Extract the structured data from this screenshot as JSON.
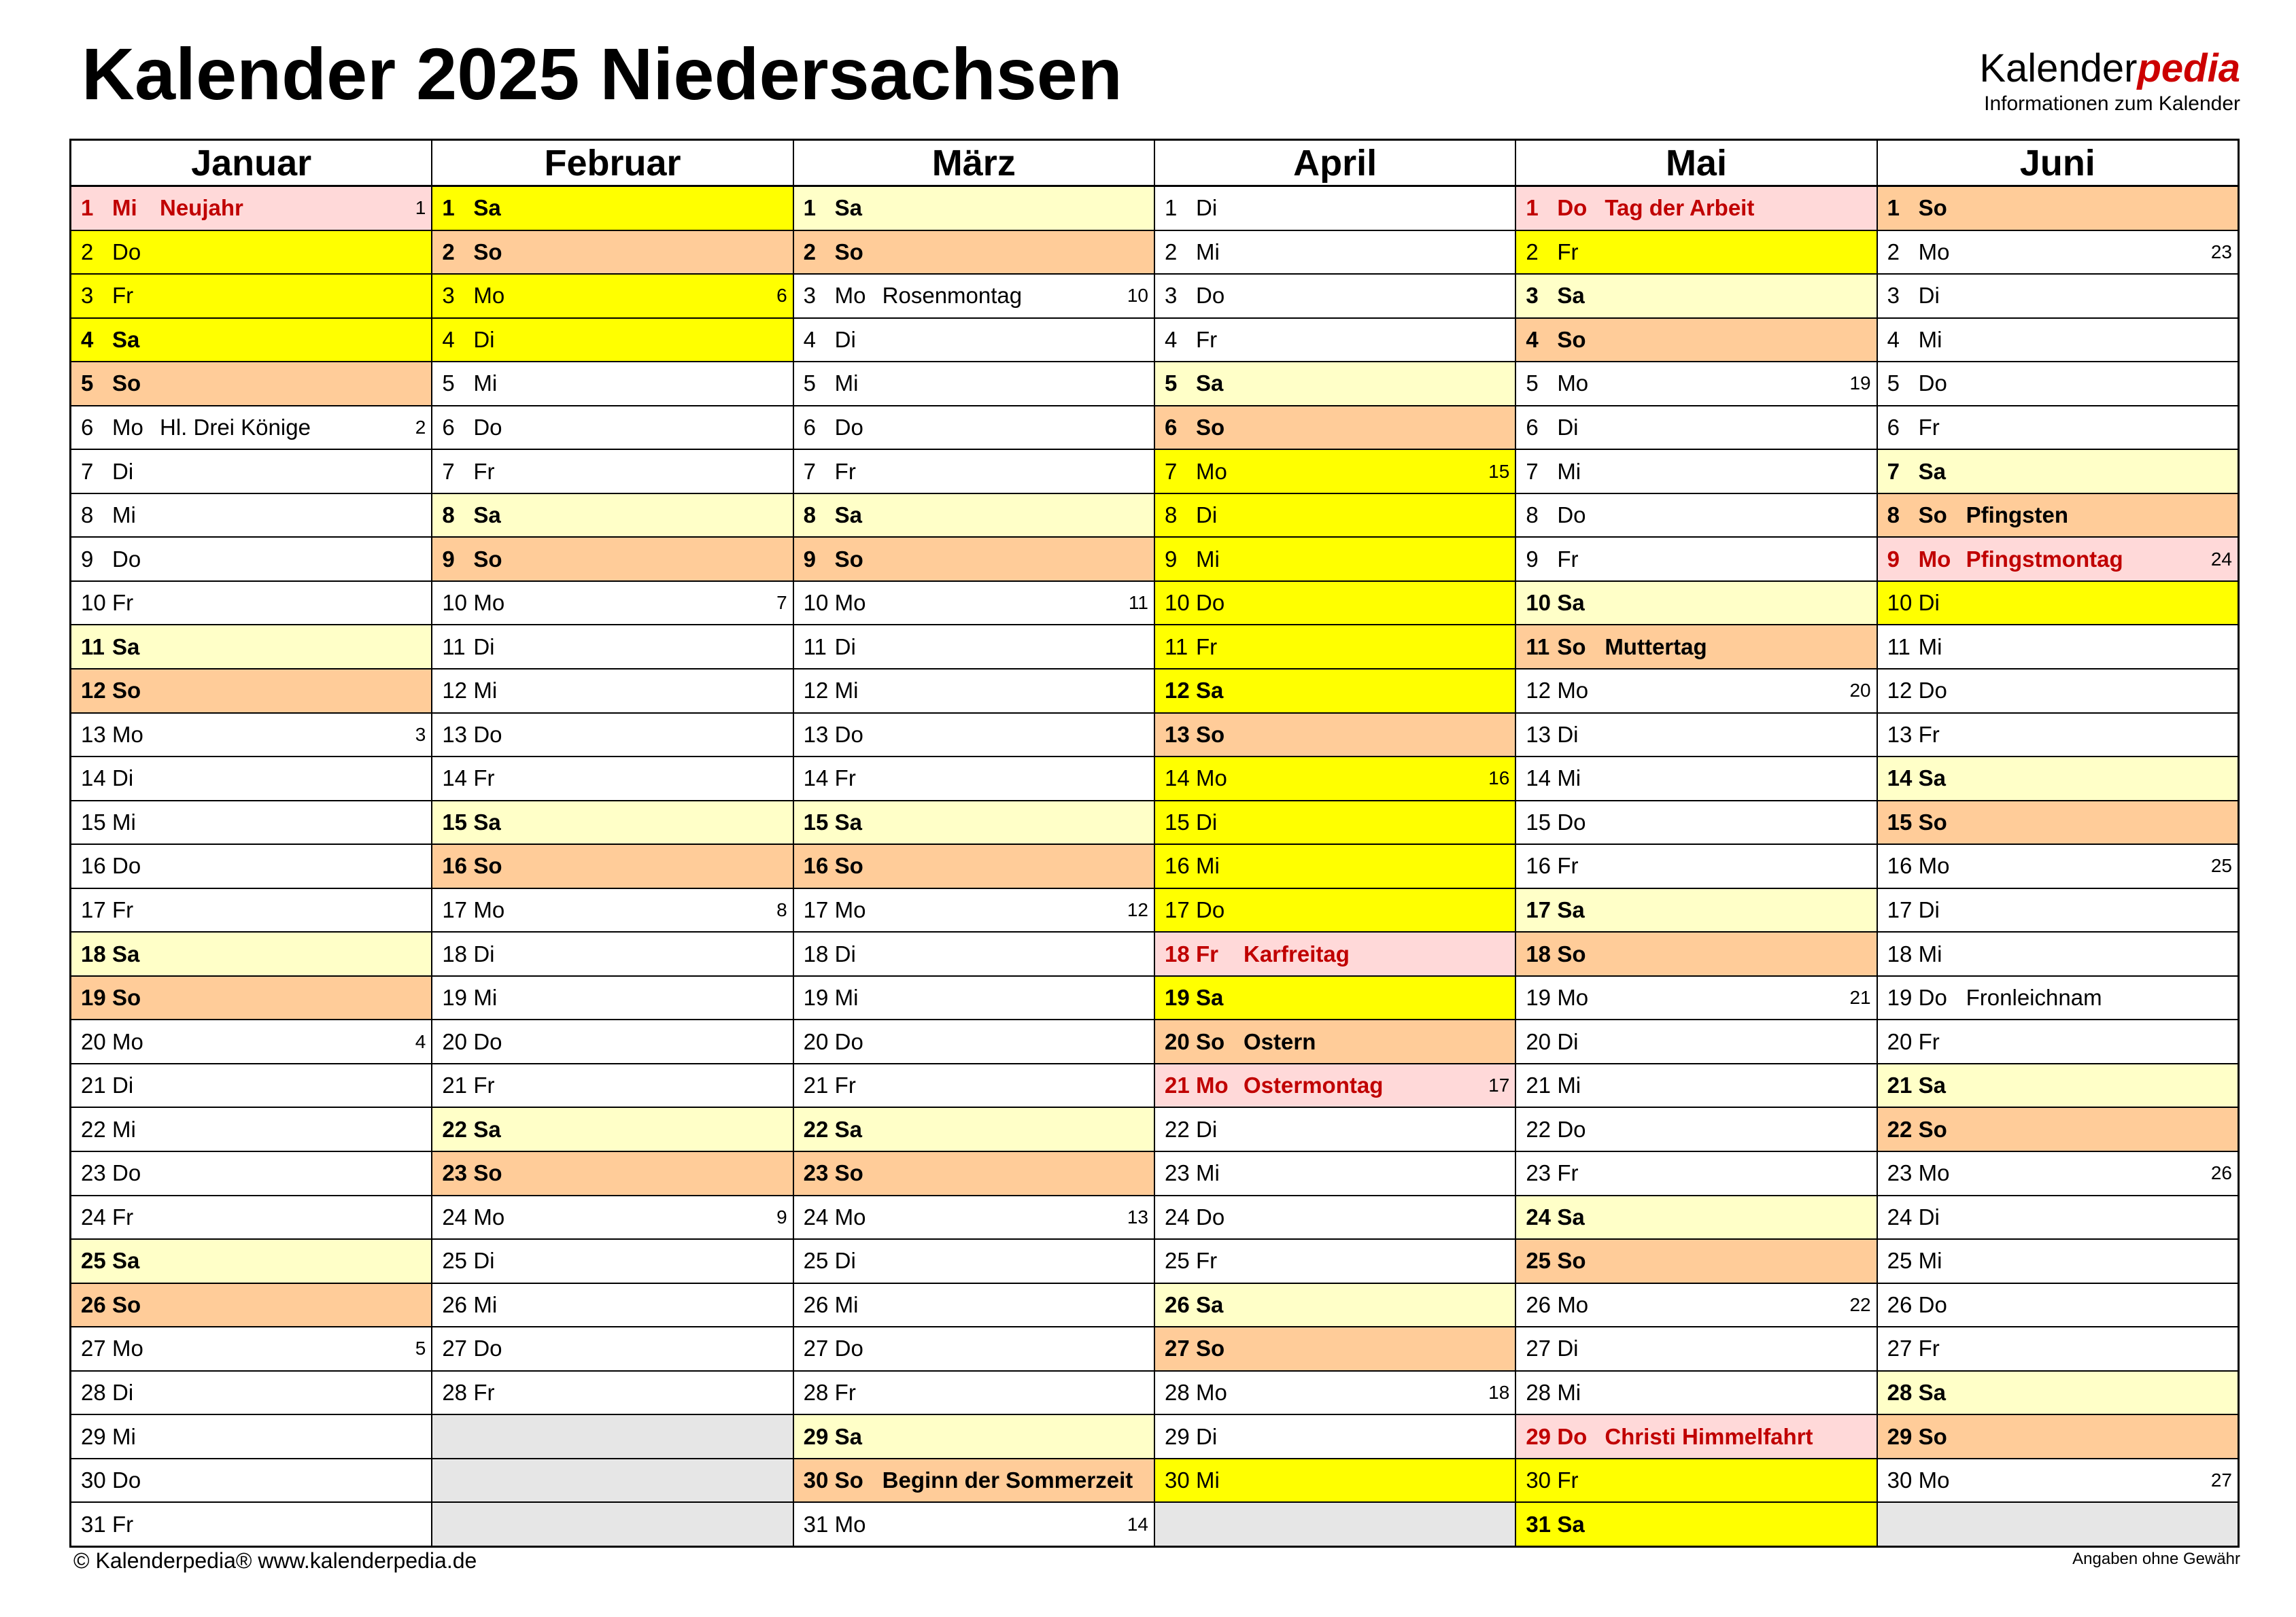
{
  "title": "Kalender 2025 Niedersachsen",
  "brand": {
    "name_regular": "Kalender",
    "name_bold": "pedia",
    "tagline": "Informationen zum Kalender"
  },
  "footer": {
    "left": "© Kalenderpedia®   www.kalenderpedia.de",
    "right": "Angaben ohne Gewähr"
  },
  "colors": {
    "saturday": "#ffffc8",
    "sunday": "#ffcc99",
    "holiday": "#ffd9d9",
    "holiday_text": "#c00000",
    "school_vacation": "#ffff00",
    "empty_cell": "#e6e6e6"
  },
  "months": [
    {
      "name": "Januar",
      "days": [
        {
          "d": "1",
          "wd": "Mi",
          "ev": "Neujahr",
          "kw": "1",
          "hol": true
        },
        {
          "d": "2",
          "wd": "Do",
          "vac": true
        },
        {
          "d": "3",
          "wd": "Fr",
          "vac": true
        },
        {
          "d": "4",
          "wd": "Sa",
          "vac": true
        },
        {
          "d": "5",
          "wd": "So"
        },
        {
          "d": "6",
          "wd": "Mo",
          "ev": "Hl. Drei Könige",
          "kw": "2"
        },
        {
          "d": "7",
          "wd": "Di"
        },
        {
          "d": "8",
          "wd": "Mi"
        },
        {
          "d": "9",
          "wd": "Do"
        },
        {
          "d": "10",
          "wd": "Fr"
        },
        {
          "d": "11",
          "wd": "Sa"
        },
        {
          "d": "12",
          "wd": "So"
        },
        {
          "d": "13",
          "wd": "Mo",
          "kw": "3"
        },
        {
          "d": "14",
          "wd": "Di"
        },
        {
          "d": "15",
          "wd": "Mi"
        },
        {
          "d": "16",
          "wd": "Do"
        },
        {
          "d": "17",
          "wd": "Fr"
        },
        {
          "d": "18",
          "wd": "Sa"
        },
        {
          "d": "19",
          "wd": "So"
        },
        {
          "d": "20",
          "wd": "Mo",
          "kw": "4"
        },
        {
          "d": "21",
          "wd": "Di"
        },
        {
          "d": "22",
          "wd": "Mi"
        },
        {
          "d": "23",
          "wd": "Do"
        },
        {
          "d": "24",
          "wd": "Fr"
        },
        {
          "d": "25",
          "wd": "Sa"
        },
        {
          "d": "26",
          "wd": "So"
        },
        {
          "d": "27",
          "wd": "Mo",
          "kw": "5"
        },
        {
          "d": "28",
          "wd": "Di"
        },
        {
          "d": "29",
          "wd": "Mi"
        },
        {
          "d": "30",
          "wd": "Do"
        },
        {
          "d": "31",
          "wd": "Fr"
        }
      ]
    },
    {
      "name": "Februar",
      "days": [
        {
          "d": "1",
          "wd": "Sa",
          "vac": true
        },
        {
          "d": "2",
          "wd": "So"
        },
        {
          "d": "3",
          "wd": "Mo",
          "kw": "6",
          "vac": true
        },
        {
          "d": "4",
          "wd": "Di",
          "vac": true
        },
        {
          "d": "5",
          "wd": "Mi"
        },
        {
          "d": "6",
          "wd": "Do"
        },
        {
          "d": "7",
          "wd": "Fr"
        },
        {
          "d": "8",
          "wd": "Sa"
        },
        {
          "d": "9",
          "wd": "So"
        },
        {
          "d": "10",
          "wd": "Mo",
          "kw": "7"
        },
        {
          "d": "11",
          "wd": "Di"
        },
        {
          "d": "12",
          "wd": "Mi"
        },
        {
          "d": "13",
          "wd": "Do"
        },
        {
          "d": "14",
          "wd": "Fr"
        },
        {
          "d": "15",
          "wd": "Sa"
        },
        {
          "d": "16",
          "wd": "So"
        },
        {
          "d": "17",
          "wd": "Mo",
          "kw": "8"
        },
        {
          "d": "18",
          "wd": "Di"
        },
        {
          "d": "19",
          "wd": "Mi"
        },
        {
          "d": "20",
          "wd": "Do"
        },
        {
          "d": "21",
          "wd": "Fr"
        },
        {
          "d": "22",
          "wd": "Sa"
        },
        {
          "d": "23",
          "wd": "So"
        },
        {
          "d": "24",
          "wd": "Mo",
          "kw": "9"
        },
        {
          "d": "25",
          "wd": "Di"
        },
        {
          "d": "26",
          "wd": "Mi"
        },
        {
          "d": "27",
          "wd": "Do"
        },
        {
          "d": "28",
          "wd": "Fr"
        }
      ]
    },
    {
      "name": "März",
      "days": [
        {
          "d": "1",
          "wd": "Sa"
        },
        {
          "d": "2",
          "wd": "So"
        },
        {
          "d": "3",
          "wd": "Mo",
          "ev": "Rosenmontag",
          "kw": "10"
        },
        {
          "d": "4",
          "wd": "Di"
        },
        {
          "d": "5",
          "wd": "Mi"
        },
        {
          "d": "6",
          "wd": "Do"
        },
        {
          "d": "7",
          "wd": "Fr"
        },
        {
          "d": "8",
          "wd": "Sa"
        },
        {
          "d": "9",
          "wd": "So"
        },
        {
          "d": "10",
          "wd": "Mo",
          "kw": "11"
        },
        {
          "d": "11",
          "wd": "Di"
        },
        {
          "d": "12",
          "wd": "Mi"
        },
        {
          "d": "13",
          "wd": "Do"
        },
        {
          "d": "14",
          "wd": "Fr"
        },
        {
          "d": "15",
          "wd": "Sa"
        },
        {
          "d": "16",
          "wd": "So"
        },
        {
          "d": "17",
          "wd": "Mo",
          "kw": "12"
        },
        {
          "d": "18",
          "wd": "Di"
        },
        {
          "d": "19",
          "wd": "Mi"
        },
        {
          "d": "20",
          "wd": "Do"
        },
        {
          "d": "21",
          "wd": "Fr"
        },
        {
          "d": "22",
          "wd": "Sa"
        },
        {
          "d": "23",
          "wd": "So"
        },
        {
          "d": "24",
          "wd": "Mo",
          "kw": "13"
        },
        {
          "d": "25",
          "wd": "Di"
        },
        {
          "d": "26",
          "wd": "Mi"
        },
        {
          "d": "27",
          "wd": "Do"
        },
        {
          "d": "28",
          "wd": "Fr"
        },
        {
          "d": "29",
          "wd": "Sa"
        },
        {
          "d": "30",
          "wd": "So",
          "ev": "Beginn der Sommerzeit"
        },
        {
          "d": "31",
          "wd": "Mo",
          "kw": "14"
        }
      ]
    },
    {
      "name": "April",
      "days": [
        {
          "d": "1",
          "wd": "Di"
        },
        {
          "d": "2",
          "wd": "Mi"
        },
        {
          "d": "3",
          "wd": "Do"
        },
        {
          "d": "4",
          "wd": "Fr"
        },
        {
          "d": "5",
          "wd": "Sa"
        },
        {
          "d": "6",
          "wd": "So"
        },
        {
          "d": "7",
          "wd": "Mo",
          "kw": "15",
          "vac": true
        },
        {
          "d": "8",
          "wd": "Di",
          "vac": true
        },
        {
          "d": "9",
          "wd": "Mi",
          "vac": true
        },
        {
          "d": "10",
          "wd": "Do",
          "vac": true
        },
        {
          "d": "11",
          "wd": "Fr",
          "vac": true
        },
        {
          "d": "12",
          "wd": "Sa",
          "vac": true
        },
        {
          "d": "13",
          "wd": "So"
        },
        {
          "d": "14",
          "wd": "Mo",
          "kw": "16",
          "vac": true
        },
        {
          "d": "15",
          "wd": "Di",
          "vac": true
        },
        {
          "d": "16",
          "wd": "Mi",
          "vac": true
        },
        {
          "d": "17",
          "wd": "Do",
          "vac": true
        },
        {
          "d": "18",
          "wd": "Fr",
          "ev": "Karfreitag",
          "hol": true
        },
        {
          "d": "19",
          "wd": "Sa",
          "vac": true
        },
        {
          "d": "20",
          "wd": "So",
          "ev": "Ostern"
        },
        {
          "d": "21",
          "wd": "Mo",
          "ev": "Ostermontag",
          "kw": "17",
          "hol": true
        },
        {
          "d": "22",
          "wd": "Di"
        },
        {
          "d": "23",
          "wd": "Mi"
        },
        {
          "d": "24",
          "wd": "Do"
        },
        {
          "d": "25",
          "wd": "Fr"
        },
        {
          "d": "26",
          "wd": "Sa"
        },
        {
          "d": "27",
          "wd": "So"
        },
        {
          "d": "28",
          "wd": "Mo",
          "kw": "18"
        },
        {
          "d": "29",
          "wd": "Di"
        },
        {
          "d": "30",
          "wd": "Mi",
          "vac": true
        }
      ]
    },
    {
      "name": "Mai",
      "days": [
        {
          "d": "1",
          "wd": "Do",
          "ev": "Tag der Arbeit",
          "hol": true
        },
        {
          "d": "2",
          "wd": "Fr",
          "vac": true
        },
        {
          "d": "3",
          "wd": "Sa"
        },
        {
          "d": "4",
          "wd": "So"
        },
        {
          "d": "5",
          "wd": "Mo",
          "kw": "19"
        },
        {
          "d": "6",
          "wd": "Di"
        },
        {
          "d": "7",
          "wd": "Mi"
        },
        {
          "d": "8",
          "wd": "Do"
        },
        {
          "d": "9",
          "wd": "Fr"
        },
        {
          "d": "10",
          "wd": "Sa"
        },
        {
          "d": "11",
          "wd": "So",
          "ev": "Muttertag"
        },
        {
          "d": "12",
          "wd": "Mo",
          "kw": "20"
        },
        {
          "d": "13",
          "wd": "Di"
        },
        {
          "d": "14",
          "wd": "Mi"
        },
        {
          "d": "15",
          "wd": "Do"
        },
        {
          "d": "16",
          "wd": "Fr"
        },
        {
          "d": "17",
          "wd": "Sa"
        },
        {
          "d": "18",
          "wd": "So"
        },
        {
          "d": "19",
          "wd": "Mo",
          "kw": "21"
        },
        {
          "d": "20",
          "wd": "Di"
        },
        {
          "d": "21",
          "wd": "Mi"
        },
        {
          "d": "22",
          "wd": "Do"
        },
        {
          "d": "23",
          "wd": "Fr"
        },
        {
          "d": "24",
          "wd": "Sa"
        },
        {
          "d": "25",
          "wd": "So"
        },
        {
          "d": "26",
          "wd": "Mo",
          "kw": "22"
        },
        {
          "d": "27",
          "wd": "Di"
        },
        {
          "d": "28",
          "wd": "Mi"
        },
        {
          "d": "29",
          "wd": "Do",
          "ev": "Christi Himmelfahrt",
          "hol": true
        },
        {
          "d": "30",
          "wd": "Fr",
          "vac": true
        },
        {
          "d": "31",
          "wd": "Sa",
          "vac": true
        }
      ]
    },
    {
      "name": "Juni",
      "days": [
        {
          "d": "1",
          "wd": "So"
        },
        {
          "d": "2",
          "wd": "Mo",
          "kw": "23"
        },
        {
          "d": "3",
          "wd": "Di"
        },
        {
          "d": "4",
          "wd": "Mi"
        },
        {
          "d": "5",
          "wd": "Do"
        },
        {
          "d": "6",
          "wd": "Fr"
        },
        {
          "d": "7",
          "wd": "Sa"
        },
        {
          "d": "8",
          "wd": "So",
          "ev": "Pfingsten"
        },
        {
          "d": "9",
          "wd": "Mo",
          "ev": "Pfingstmontag",
          "kw": "24",
          "hol": true
        },
        {
          "d": "10",
          "wd": "Di",
          "vac": true
        },
        {
          "d": "11",
          "wd": "Mi"
        },
        {
          "d": "12",
          "wd": "Do"
        },
        {
          "d": "13",
          "wd": "Fr"
        },
        {
          "d": "14",
          "wd": "Sa"
        },
        {
          "d": "15",
          "wd": "So"
        },
        {
          "d": "16",
          "wd": "Mo",
          "kw": "25"
        },
        {
          "d": "17",
          "wd": "Di"
        },
        {
          "d": "18",
          "wd": "Mi"
        },
        {
          "d": "19",
          "wd": "Do",
          "ev": "Fronleichnam"
        },
        {
          "d": "20",
          "wd": "Fr"
        },
        {
          "d": "21",
          "wd": "Sa"
        },
        {
          "d": "22",
          "wd": "So"
        },
        {
          "d": "23",
          "wd": "Mo",
          "kw": "26"
        },
        {
          "d": "24",
          "wd": "Di"
        },
        {
          "d": "25",
          "wd": "Mi"
        },
        {
          "d": "26",
          "wd": "Do"
        },
        {
          "d": "27",
          "wd": "Fr"
        },
        {
          "d": "28",
          "wd": "Sa"
        },
        {
          "d": "29",
          "wd": "So"
        },
        {
          "d": "30",
          "wd": "Mo",
          "kw": "27"
        }
      ]
    }
  ]
}
